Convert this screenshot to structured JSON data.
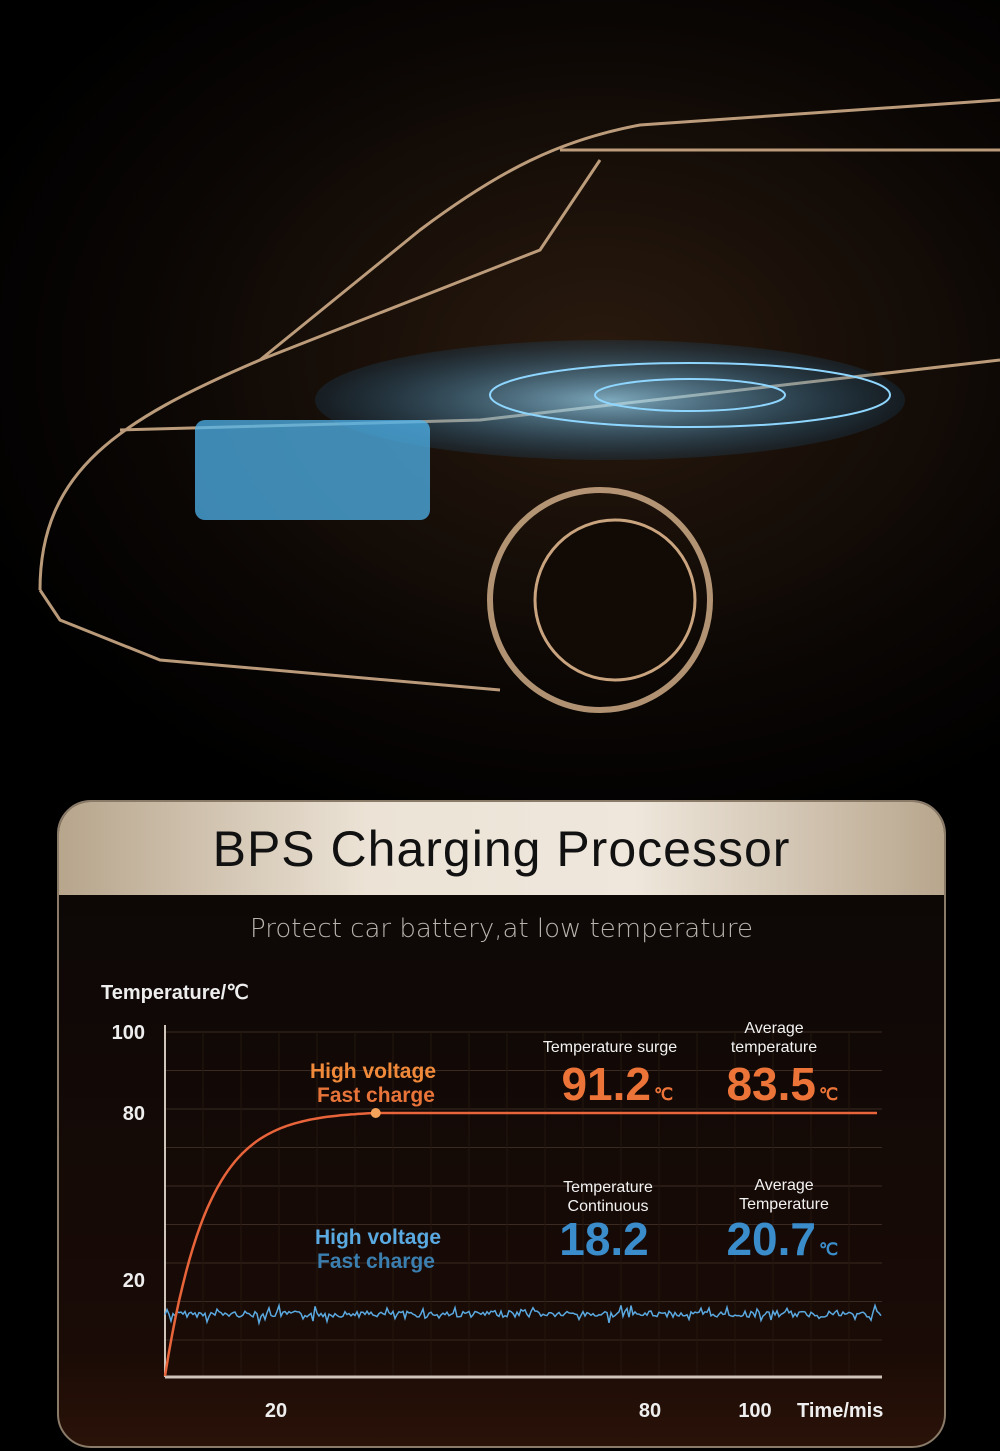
{
  "header": {
    "title": "BPS Charging Processor",
    "subtitle": "Protect car battery,at low temperature"
  },
  "colors": {
    "orange": "#e8643a",
    "blue": "#4fa3dc",
    "panel_band": "#ece3d6"
  },
  "chart_data": {
    "type": "line",
    "ylabel": "Temperature/℃",
    "xlabel": "Time/mis",
    "yticks": [
      "100",
      "80",
      "20"
    ],
    "xticks": [
      "20",
      "80",
      "100"
    ],
    "grid": true,
    "series": [
      {
        "name": "High voltage Fast charge",
        "color": "#e8643a",
        "x": [
          0,
          5,
          10,
          20,
          30,
          36,
          60,
          80,
          100,
          120
        ],
        "y": [
          0,
          40,
          60,
          74,
          79,
          80,
          80,
          80,
          80,
          80
        ]
      },
      {
        "name": "High voltage Fast charge",
        "color": "#4fa3dc",
        "x": [
          0,
          120
        ],
        "y": [
          16,
          16
        ]
      }
    ],
    "annotations": {
      "orange_label": [
        "High voltage",
        "Fast charge"
      ],
      "blue_label": [
        "High voltage",
        "Fast charge"
      ],
      "surge_label": "Temperature surge",
      "surge_value": "91.2",
      "surge_unit": "℃",
      "avg_label": [
        "Average",
        "temperature"
      ],
      "avg_value": "83.5",
      "avg_unit": "℃",
      "cont_label": [
        "Temperature",
        "Continuous"
      ],
      "cont_value": "18.2",
      "avg2_label": [
        "Average",
        "Temperature"
      ],
      "avg2_value": "20.7",
      "avg2_unit": "℃"
    }
  }
}
